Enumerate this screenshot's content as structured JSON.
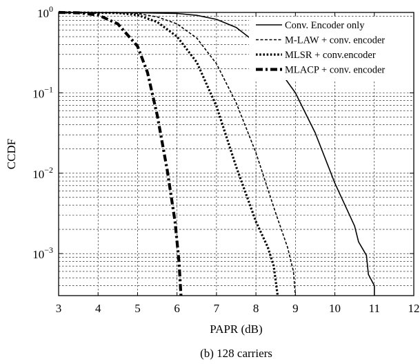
{
  "chart_data": {
    "type": "line",
    "title": "",
    "caption": "(b) 128 carriers",
    "xlabel": "PAPR (dB)",
    "ylabel": "CCDF",
    "xlim": [
      3,
      12
    ],
    "ylim": [
      0.0003,
      1
    ],
    "yscale": "log",
    "x_ticks": [
      "3",
      "4",
      "5",
      "6",
      "7",
      "8",
      "9",
      "10",
      "11",
      "12"
    ],
    "y_ticks": [
      {
        "base": "10",
        "exp": "0"
      },
      {
        "base": "10",
        "exp": "−1"
      },
      {
        "base": "10",
        "exp": "−2"
      },
      {
        "base": "10",
        "exp": "−3"
      }
    ],
    "grid": true,
    "legend_position": "top-right",
    "series": [
      {
        "name": "Conv. Encoder only",
        "style": "solid",
        "points": [
          [
            3,
            1.0
          ],
          [
            5,
            0.99
          ],
          [
            6,
            0.97
          ],
          [
            6.5,
            0.92
          ],
          [
            7,
            0.82
          ],
          [
            7.5,
            0.65
          ],
          [
            8,
            0.42
          ],
          [
            8.5,
            0.22
          ],
          [
            9,
            0.1
          ],
          [
            9.5,
            0.032
          ],
          [
            10,
            0.0075
          ],
          [
            10.5,
            0.0022
          ],
          [
            10.6,
            0.0014
          ],
          [
            10.8,
            0.00095
          ],
          [
            10.85,
            0.00055
          ],
          [
            11,
            0.0004
          ],
          [
            11,
            0.0003
          ]
        ]
      },
      {
        "name": "M-LAW + conv. encoder",
        "style": "dashed",
        "points": [
          [
            3,
            1.0
          ],
          [
            4.5,
            0.99
          ],
          [
            5,
            0.97
          ],
          [
            5.5,
            0.88
          ],
          [
            6,
            0.72
          ],
          [
            6.5,
            0.48
          ],
          [
            7,
            0.23
          ],
          [
            7.5,
            0.075
          ],
          [
            8,
            0.018
          ],
          [
            8.5,
            0.0032
          ],
          [
            8.8,
            0.0012
          ],
          [
            8.95,
            0.0006
          ],
          [
            9,
            0.0003
          ]
        ]
      },
      {
        "name": "MLSR + conv.encoder",
        "style": "dotted",
        "points": [
          [
            3,
            1.0
          ],
          [
            4.5,
            0.985
          ],
          [
            5,
            0.93
          ],
          [
            5.5,
            0.76
          ],
          [
            6,
            0.5
          ],
          [
            6.5,
            0.24
          ],
          [
            7,
            0.068
          ],
          [
            7.5,
            0.012
          ],
          [
            8,
            0.0025
          ],
          [
            8.3,
            0.0012
          ],
          [
            8.45,
            0.0007
          ],
          [
            8.55,
            0.0003
          ]
        ]
      },
      {
        "name": "MLACP + conv. encoder",
        "style": "dashdot",
        "points": [
          [
            3,
            1.0
          ],
          [
            3.5,
            0.99
          ],
          [
            4,
            0.93
          ],
          [
            4.5,
            0.72
          ],
          [
            5,
            0.38
          ],
          [
            5.25,
            0.18
          ],
          [
            5.5,
            0.052
          ],
          [
            5.75,
            0.011
          ],
          [
            5.95,
            0.0025
          ],
          [
            6.05,
            0.0008
          ],
          [
            6.1,
            0.0003
          ]
        ]
      }
    ]
  }
}
